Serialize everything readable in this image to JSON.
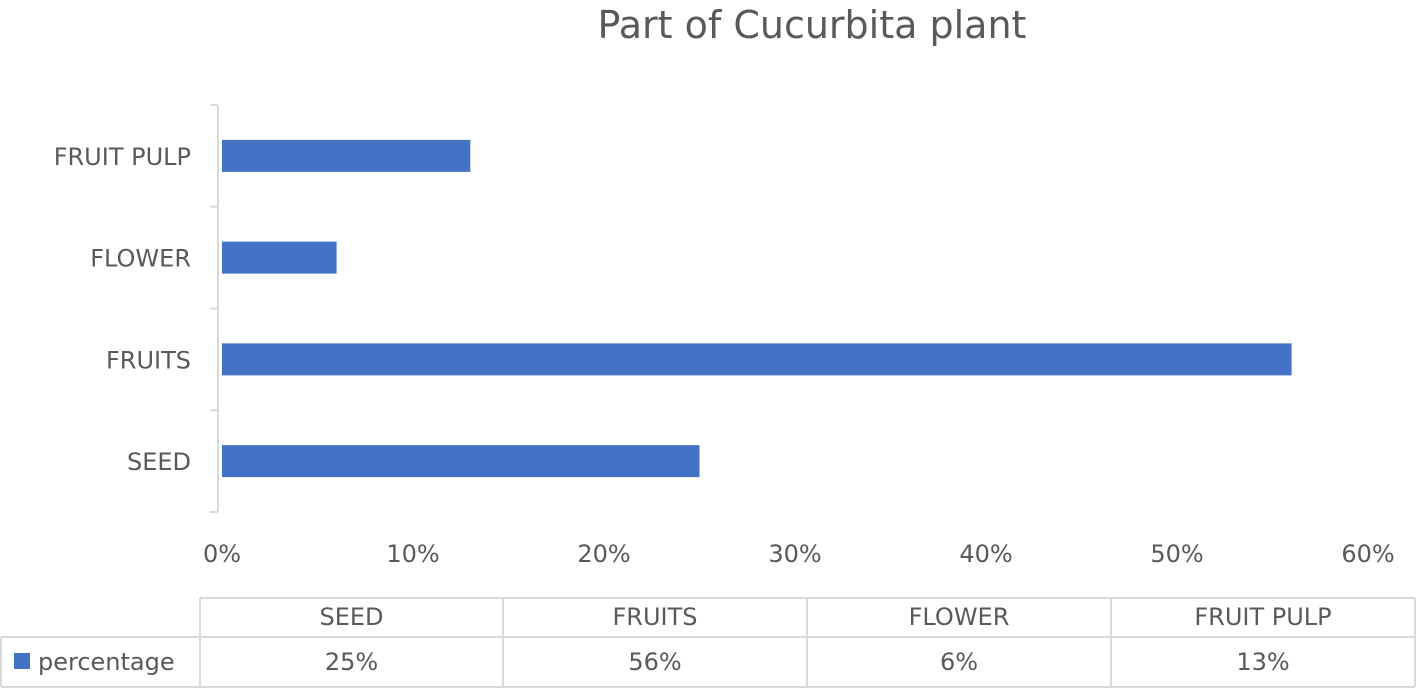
{
  "chart_data": {
    "type": "bar",
    "orientation": "horizontal",
    "title": "Part of Cucurbita plant",
    "categories": [
      "SEED",
      "FRUITS",
      "FLOWER",
      "FRUIT PULP"
    ],
    "series": [
      {
        "name": "percentage",
        "values": [
          25,
          56,
          6,
          13
        ],
        "color": "#4472C4"
      }
    ],
    "xlim": [
      0,
      60
    ],
    "xticks": [
      "0%",
      "10%",
      "20%",
      "30%",
      "40%",
      "50%",
      "60%"
    ],
    "gridlines": false,
    "data_table": {
      "header": [
        "SEED",
        "FRUITS",
        "FLOWER",
        "FRUIT PULP"
      ],
      "row_label": "percentage",
      "row_values": [
        "25%",
        "56%",
        "6%",
        "13%"
      ]
    }
  }
}
